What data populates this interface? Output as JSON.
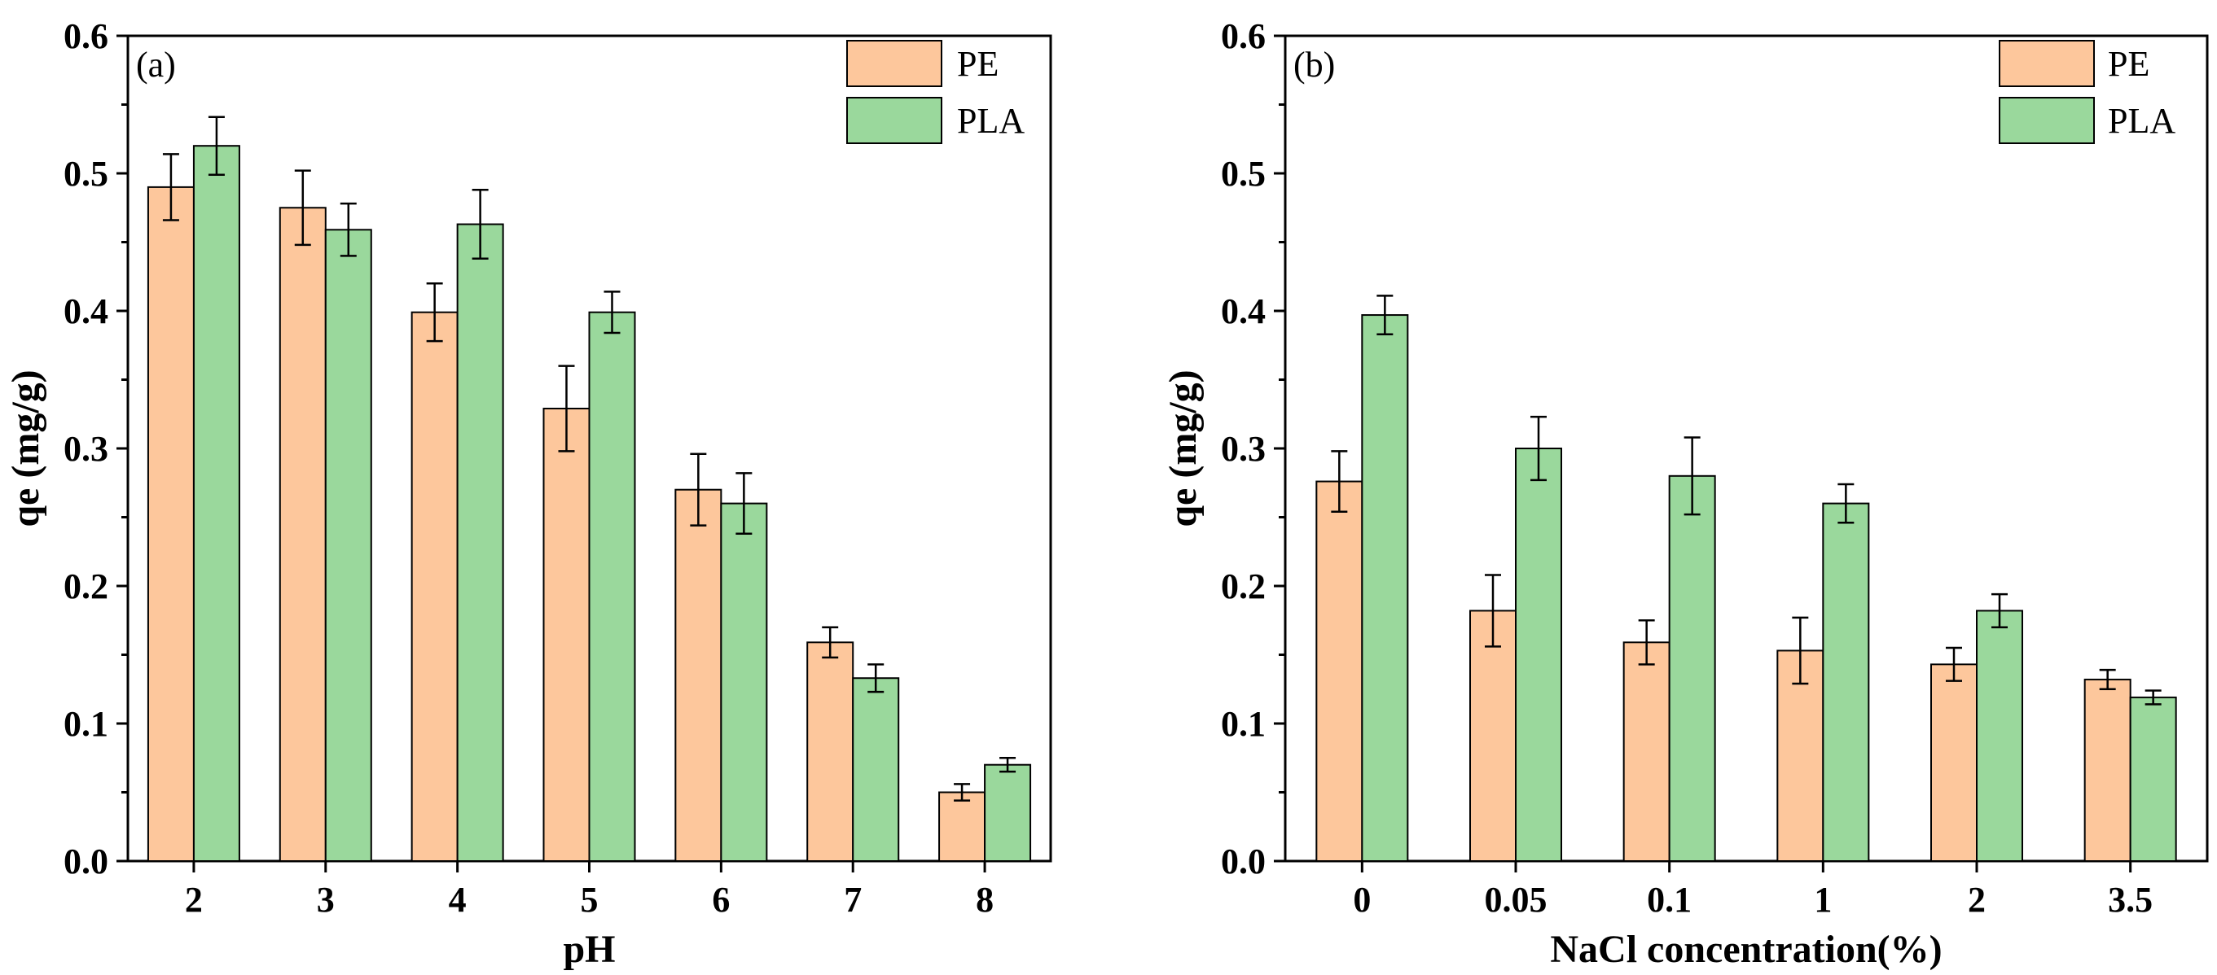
{
  "colors": {
    "PE": "#FDC79C",
    "PLA": "#9AD89C"
  },
  "chart_data": [
    {
      "type": "bar",
      "panel_label": "(a)",
      "xlabel": "pH",
      "ylabel": "qe (mg/g)",
      "ylim": [
        0,
        0.6
      ],
      "yticks": [
        "0.0",
        "0.1",
        "0.2",
        "0.3",
        "0.4",
        "0.5",
        "0.6"
      ],
      "categories": [
        "2",
        "3",
        "4",
        "5",
        "6",
        "7",
        "8"
      ],
      "legend_position": "top-right",
      "series": [
        {
          "name": "PE",
          "values": [
            0.49,
            0.475,
            0.399,
            0.329,
            0.27,
            0.159,
            0.05
          ],
          "errors": [
            0.024,
            0.027,
            0.021,
            0.031,
            0.026,
            0.011,
            0.006
          ]
        },
        {
          "name": "PLA",
          "values": [
            0.52,
            0.459,
            0.463,
            0.399,
            0.26,
            0.133,
            0.07
          ],
          "errors": [
            0.021,
            0.019,
            0.025,
            0.015,
            0.022,
            0.01,
            0.005
          ]
        }
      ]
    },
    {
      "type": "bar",
      "panel_label": "(b)",
      "xlabel": "NaCl concentration(%)",
      "ylabel": "qe (mg/g)",
      "ylim": [
        0,
        0.6
      ],
      "yticks": [
        "0.0",
        "0.1",
        "0.2",
        "0.3",
        "0.4",
        "0.5",
        "0.6"
      ],
      "categories": [
        "0",
        "0.05",
        "0.1",
        "1",
        "2",
        "3.5"
      ],
      "legend_position": "top-right",
      "series": [
        {
          "name": "PE",
          "values": [
            0.276,
            0.182,
            0.159,
            0.153,
            0.143,
            0.132
          ],
          "errors": [
            0.022,
            0.026,
            0.016,
            0.024,
            0.012,
            0.007
          ]
        },
        {
          "name": "PLA",
          "values": [
            0.397,
            0.3,
            0.28,
            0.26,
            0.182,
            0.119
          ],
          "errors": [
            0.014,
            0.023,
            0.028,
            0.014,
            0.012,
            0.005
          ]
        }
      ]
    }
  ]
}
